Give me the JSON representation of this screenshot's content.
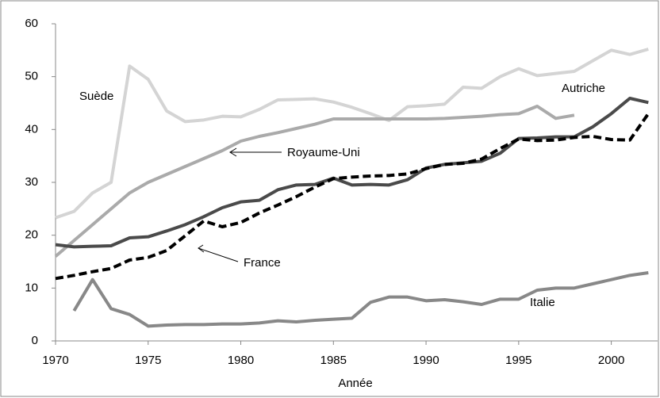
{
  "chart_data": {
    "type": "line",
    "xlabel": "Année",
    "x": [
      1970,
      1971,
      1972,
      1973,
      1974,
      1975,
      1976,
      1977,
      1978,
      1979,
      1980,
      1981,
      1982,
      1983,
      1984,
      1985,
      1986,
      1987,
      1988,
      1989,
      1990,
      1991,
      1992,
      1993,
      1994,
      1995,
      1996,
      1997,
      1998,
      1999,
      2000,
      2001,
      2002
    ],
    "series": [
      {
        "name": "Suède",
        "color": "#d4d4d4",
        "values": [
          23.3,
          24.5,
          28,
          30,
          52,
          49.5,
          43.5,
          41.5,
          41.8,
          42.5,
          42.4,
          43.8,
          45.6,
          45.7,
          45.8,
          45.2,
          44.2,
          43,
          41.7,
          44.3,
          44.5,
          44.8,
          48,
          47.8,
          50,
          51.5,
          50.2,
          50.6,
          51,
          53,
          55,
          54.2,
          55.2
        ]
      },
      {
        "name": "Royaume-Uni",
        "color": "#aaaaaa",
        "values": [
          16,
          19,
          22,
          25,
          28,
          30,
          31.5,
          33,
          34.5,
          36,
          37.8,
          38.7,
          39.4,
          40.2,
          41,
          42,
          42,
          42,
          42,
          42,
          42,
          42.1,
          42.3,
          42.5,
          42.8,
          43,
          44.4,
          42.1,
          42.7,
          null,
          null,
          null,
          null
        ]
      },
      {
        "name": "Autriche",
        "color": "#4a4a4a",
        "values": [
          18.2,
          17.8,
          17.9,
          18,
          19.5,
          19.7,
          20.8,
          22,
          23.5,
          25.2,
          26.3,
          26.6,
          28.6,
          29.5,
          29.6,
          30.8,
          29.5,
          29.6,
          29.5,
          30.5,
          32.7,
          33.4,
          33.7,
          34,
          35.5,
          38.3,
          38.4,
          38.6,
          38.6,
          40.5,
          43,
          45.9,
          45.1
        ]
      },
      {
        "name": "France",
        "color": "#000000",
        "dashed": true,
        "values": [
          11.8,
          12.4,
          13.1,
          13.7,
          15.3,
          15.8,
          17.1,
          19.9,
          22.7,
          21.6,
          22.4,
          24.2,
          25.7,
          27.3,
          29.1,
          30.7,
          31,
          31.2,
          31.3,
          31.6,
          32.6,
          33.4,
          33.6,
          34.4,
          36.4,
          38.2,
          37.9,
          38,
          38.5,
          38.7,
          38.1,
          38,
          43
        ]
      },
      {
        "name": "Italie",
        "color": "#888888",
        "values": [
          null,
          5.7,
          11.6,
          6.1,
          5,
          2.8,
          3,
          3.1,
          3.1,
          3.2,
          3.2,
          3.4,
          3.8,
          3.6,
          3.9,
          4.1,
          4.3,
          7.3,
          8.3,
          8.3,
          7.6,
          7.8,
          7.4,
          6.9,
          7.9,
          7.9,
          9.6,
          10,
          10,
          10.8,
          11.6,
          12.4,
          12.9
        ]
      }
    ],
    "xlim": [
      1970,
      2002.5
    ],
    "xticks": [
      1970,
      1975,
      1980,
      1985,
      1990,
      1995,
      2000
    ],
    "ylim": [
      0,
      60
    ],
    "yticks": [
      0,
      10,
      20,
      30,
      40,
      50,
      60
    ]
  }
}
